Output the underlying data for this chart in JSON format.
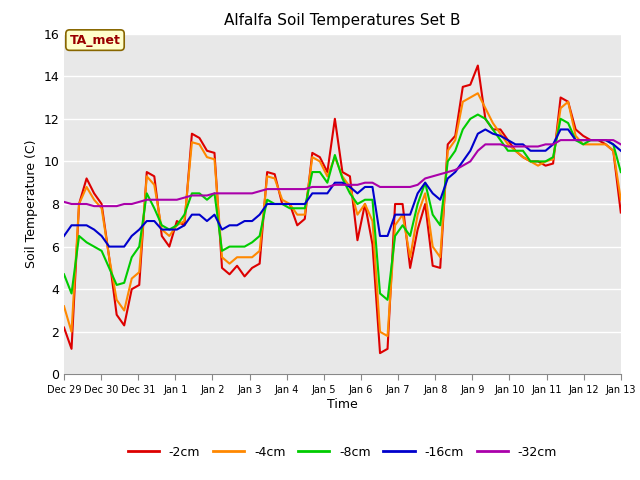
{
  "title": "Alfalfa Soil Temperatures Set B",
  "xlabel": "Time",
  "ylabel": "Soil Temperature (C)",
  "ylim": [
    0,
    16
  ],
  "annotation_text": "TA_met",
  "annotation_color": "#990000",
  "annotation_bg": "#ffffcc",
  "bg_color": "#ffffff",
  "plot_bg": "#e8e8e8",
  "line_colors": {
    "-2cm": "#dd0000",
    "-4cm": "#ff8800",
    "-8cm": "#00cc00",
    "-16cm": "#0000cc",
    "-32cm": "#aa00aa"
  },
  "line_width": 1.5,
  "tick_labels": [
    "Dec 29",
    "Dec 30",
    "Dec 31",
    "Jan 1",
    "Jan 2",
    "Jan 3",
    "Jan 4",
    "Jan 5",
    "Jan 6",
    "Jan 7",
    "Jan 8",
    "Jan 9",
    "Jan 10",
    "Jan 11",
    "Jan 12",
    "Jan 13"
  ],
  "series": {
    "-2cm": [
      2.2,
      1.2,
      8.0,
      9.2,
      8.5,
      8.0,
      5.5,
      2.8,
      2.3,
      4.0,
      4.2,
      9.5,
      9.3,
      6.5,
      6.0,
      7.2,
      7.0,
      11.3,
      11.1,
      10.5,
      10.4,
      5.0,
      4.7,
      5.1,
      4.6,
      5.0,
      5.2,
      9.5,
      9.4,
      8.0,
      8.0,
      7.0,
      7.3,
      10.4,
      10.2,
      9.5,
      12.0,
      9.5,
      9.3,
      6.3,
      8.0,
      6.1,
      1.0,
      1.2,
      8.0,
      8.0,
      5.0,
      6.8,
      8.0,
      5.1,
      5.0,
      10.8,
      11.2,
      13.5,
      13.6,
      14.5,
      12.0,
      11.5,
      11.5,
      11.0,
      10.5,
      10.2,
      10.0,
      10.0,
      9.8,
      9.9,
      13.0,
      12.8,
      11.5,
      11.2,
      11.0,
      11.0,
      10.8,
      10.5,
      7.6
    ],
    "-4cm": [
      3.2,
      2.0,
      8.0,
      8.8,
      8.2,
      7.8,
      5.5,
      3.5,
      3.0,
      4.5,
      4.8,
      9.3,
      8.9,
      6.8,
      6.5,
      7.0,
      7.2,
      10.9,
      10.8,
      10.2,
      10.1,
      5.5,
      5.2,
      5.5,
      5.5,
      5.5,
      5.8,
      9.3,
      9.2,
      8.2,
      8.0,
      7.5,
      7.5,
      10.2,
      10.0,
      9.3,
      10.2,
      9.3,
      8.8,
      7.5,
      8.0,
      7.2,
      2.0,
      1.8,
      7.0,
      7.5,
      5.5,
      7.5,
      8.5,
      6.0,
      5.5,
      10.5,
      11.0,
      12.8,
      13.0,
      13.2,
      12.5,
      11.8,
      11.3,
      10.8,
      10.5,
      10.2,
      10.0,
      9.8,
      10.0,
      10.1,
      12.5,
      12.8,
      11.2,
      10.8,
      10.8,
      10.8,
      10.8,
      10.5,
      8.2
    ],
    "-8cm": [
      4.7,
      3.8,
      6.5,
      6.2,
      6.0,
      5.8,
      5.0,
      4.2,
      4.3,
      5.5,
      6.0,
      8.5,
      7.8,
      7.0,
      6.8,
      7.0,
      7.5,
      8.5,
      8.5,
      8.2,
      8.5,
      5.8,
      6.0,
      6.0,
      6.0,
      6.2,
      6.5,
      8.2,
      8.0,
      8.0,
      7.8,
      7.8,
      7.8,
      9.5,
      9.5,
      9.0,
      10.3,
      9.2,
      8.5,
      8.0,
      8.2,
      8.2,
      3.8,
      3.5,
      6.5,
      7.0,
      6.5,
      8.0,
      9.0,
      7.5,
      7.0,
      10.0,
      10.5,
      11.5,
      12.0,
      12.2,
      12.0,
      11.5,
      11.0,
      10.5,
      10.5,
      10.5,
      10.0,
      10.0,
      10.0,
      10.2,
      12.0,
      11.8,
      11.0,
      10.8,
      11.0,
      11.0,
      11.0,
      10.8,
      9.5
    ],
    "-16cm": [
      6.5,
      7.0,
      7.0,
      7.0,
      6.8,
      6.5,
      6.0,
      6.0,
      6.0,
      6.5,
      6.8,
      7.2,
      7.2,
      6.8,
      6.8,
      6.8,
      7.0,
      7.5,
      7.5,
      7.2,
      7.5,
      6.8,
      7.0,
      7.0,
      7.2,
      7.2,
      7.5,
      8.0,
      8.0,
      8.0,
      8.0,
      8.0,
      8.0,
      8.5,
      8.5,
      8.5,
      9.0,
      9.0,
      8.8,
      8.5,
      8.8,
      8.8,
      6.5,
      6.5,
      7.5,
      7.5,
      7.5,
      8.5,
      9.0,
      8.5,
      8.2,
      9.2,
      9.5,
      10.0,
      10.5,
      11.3,
      11.5,
      11.3,
      11.2,
      11.0,
      10.8,
      10.8,
      10.5,
      10.5,
      10.5,
      10.8,
      11.5,
      11.5,
      11.0,
      11.0,
      11.0,
      11.0,
      11.0,
      10.8,
      10.5
    ],
    "-32cm": [
      8.1,
      8.0,
      8.0,
      8.0,
      7.9,
      7.9,
      7.9,
      7.9,
      8.0,
      8.0,
      8.1,
      8.2,
      8.2,
      8.2,
      8.2,
      8.2,
      8.3,
      8.4,
      8.4,
      8.4,
      8.5,
      8.5,
      8.5,
      8.5,
      8.5,
      8.5,
      8.6,
      8.7,
      8.7,
      8.7,
      8.7,
      8.7,
      8.7,
      8.8,
      8.8,
      8.8,
      8.9,
      8.9,
      8.9,
      8.9,
      9.0,
      9.0,
      8.8,
      8.8,
      8.8,
      8.8,
      8.8,
      8.9,
      9.2,
      9.3,
      9.4,
      9.5,
      9.6,
      9.8,
      10.0,
      10.5,
      10.8,
      10.8,
      10.8,
      10.7,
      10.7,
      10.7,
      10.7,
      10.7,
      10.8,
      10.8,
      11.0,
      11.0,
      11.0,
      11.0,
      11.0,
      11.0,
      11.0,
      11.0,
      10.8
    ]
  }
}
